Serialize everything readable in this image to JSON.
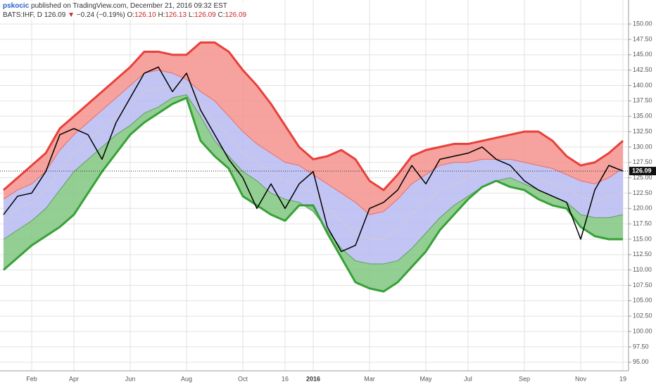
{
  "header": {
    "author": "pskocic",
    "published": " published on TradingView.com, December 21, 2016 09:32 EST",
    "symbol": "BATS:IHF, D",
    "last": "126.09",
    "arrow": "▼",
    "change": "−0.24 (−0.19%)",
    "ohlc": [
      {
        "label": "O:",
        "value": "126.10"
      },
      {
        "label": "H:",
        "value": "126.13"
      },
      {
        "label": "L:",
        "value": "126.09"
      },
      {
        "label": "C:",
        "value": "126.09"
      }
    ]
  },
  "chart_data": {
    "type": "line",
    "categories": [
      null,
      null,
      "Feb",
      null,
      null,
      "Apr",
      null,
      null,
      null,
      "Jun",
      null,
      null,
      null,
      "Aug",
      null,
      null,
      null,
      "Oct",
      null,
      null,
      "16",
      null,
      "2016",
      null,
      null,
      null,
      "Mar",
      null,
      null,
      null,
      "May",
      null,
      null,
      "Jul",
      null,
      null,
      null,
      "Sep",
      null,
      null,
      null,
      "Nov",
      null,
      null,
      "19"
    ],
    "bold_categories": [
      "2016"
    ],
    "series": [
      {
        "color": "#e8403a",
        "width": 3,
        "fill": "#f4928d",
        "values": [
          123,
          125,
          127,
          129,
          133,
          135,
          137,
          139,
          141,
          143,
          145.5,
          145.5,
          145,
          145,
          147,
          147,
          145.5,
          142.5,
          140,
          137,
          133.5,
          130,
          128,
          128.5,
          129.5,
          128,
          124.5,
          123,
          125.5,
          128.5,
          129.5,
          130,
          130.5,
          130.5,
          131,
          131.5,
          132,
          132.5,
          132.5,
          131,
          128.5,
          127,
          127.5,
          129,
          131
        ]
      },
      {
        "color": "#e86f6a",
        "width": 1,
        "fill": "#b7baf2",
        "values": [
          121.5,
          123,
          124,
          126,
          129.5,
          132,
          134,
          136,
          138,
          140,
          142,
          142.5,
          142,
          141,
          139,
          137.5,
          135,
          132.5,
          130.5,
          129,
          127.5,
          127,
          125.5,
          124,
          122.5,
          121,
          119,
          119.5,
          121.5,
          124,
          125.5,
          127,
          127.5,
          127.5,
          128,
          128,
          128,
          127.5,
          127,
          126.5,
          125.5,
          124.5,
          124,
          125,
          126.5
        ]
      },
      {
        "color": "#5f9f5f",
        "width": 1,
        "fill": "#80c580",
        "values": [
          115,
          116.5,
          118,
          120,
          123,
          126,
          128,
          130,
          132,
          133.5,
          135.5,
          136.5,
          138,
          138.5,
          135,
          131,
          128.5,
          126,
          124.5,
          122.5,
          121.5,
          121,
          119.5,
          116.5,
          113.5,
          111.5,
          111,
          111,
          111.5,
          113.5,
          116,
          118.5,
          120.5,
          122,
          123.5,
          124.5,
          125,
          124,
          123,
          122,
          121,
          119,
          118.5,
          118.5,
          119
        ]
      },
      {
        "color": "#36a236",
        "width": 3,
        "values": [
          110,
          112,
          114,
          115.5,
          117,
          119,
          122.5,
          126,
          129,
          132,
          134,
          135.5,
          137,
          138,
          131,
          128.5,
          126.5,
          122,
          120.5,
          119,
          118,
          120.5,
          120.5,
          116,
          112,
          108,
          107,
          106.5,
          108,
          110.5,
          113,
          116.5,
          119,
          121.5,
          123.5,
          124.5,
          123.5,
          123,
          121.5,
          120.5,
          120,
          117,
          115.5,
          115,
          115
        ]
      },
      {
        "color": "#cfc8dc",
        "width": 1.5,
        "values": [
          118,
          120,
          121,
          123,
          126,
          129,
          131,
          133,
          135,
          137,
          139,
          139.5,
          140,
          140,
          137,
          134,
          132,
          129,
          127.5,
          126,
          124.5,
          124,
          122.5,
          120,
          118,
          116,
          115,
          115,
          116.5,
          119,
          121,
          123,
          124,
          125,
          126,
          126,
          126.5,
          126,
          125,
          124,
          123,
          122,
          121,
          122,
          122.5
        ]
      },
      {
        "color": "#000000",
        "width": 1.5,
        "values": [
          119,
          122,
          122.5,
          126,
          132,
          133,
          132,
          128,
          134,
          138,
          142,
          143,
          139,
          142,
          136,
          132,
          128,
          125,
          120,
          124,
          120,
          124,
          126,
          117,
          113,
          114,
          120,
          121,
          123,
          127,
          124,
          128,
          128.5,
          129,
          130,
          128,
          127,
          124.5,
          123,
          122,
          121,
          115,
          123,
          127,
          126.09
        ]
      }
    ],
    "fill_pairs": [
      [
        0,
        1
      ],
      [
        1,
        2
      ],
      [
        2,
        3
      ]
    ],
    "last_price": 126.09,
    "ylim": [
      93.6,
      150.7
    ],
    "yticks": [
      {
        "value": 95,
        "label": "95.00"
      },
      {
        "value": 97.5,
        "label": "97.50"
      },
      {
        "value": 100,
        "label": "100.00"
      },
      {
        "value": 102.5,
        "label": "102.50"
      },
      {
        "value": 105,
        "label": "105.00"
      },
      {
        "value": 107.5,
        "label": "107.50"
      },
      {
        "value": 110,
        "label": "110.00"
      },
      {
        "value": 112.5,
        "label": "112.50"
      },
      {
        "value": 115,
        "label": "115.00"
      },
      {
        "value": 117.5,
        "label": "117.50"
      },
      {
        "value": 120,
        "label": "120.00"
      },
      {
        "value": 122.5,
        "label": "122.50"
      },
      {
        "value": 125,
        "label": "125.00"
      },
      {
        "value": 127.5,
        "label": "127.50"
      },
      {
        "value": 130,
        "label": "130.00"
      },
      {
        "value": 132.5,
        "label": "132.50"
      },
      {
        "value": 135,
        "label": "135.00"
      },
      {
        "value": 137.5,
        "label": "137.50"
      },
      {
        "value": 140,
        "label": "140.00"
      },
      {
        "value": 142.5,
        "label": "142.50"
      },
      {
        "value": 145,
        "label": "145.00"
      },
      {
        "value": 147.5,
        "label": "147.50"
      },
      {
        "value": 150,
        "label": "150.00"
      }
    ],
    "grid": true
  }
}
